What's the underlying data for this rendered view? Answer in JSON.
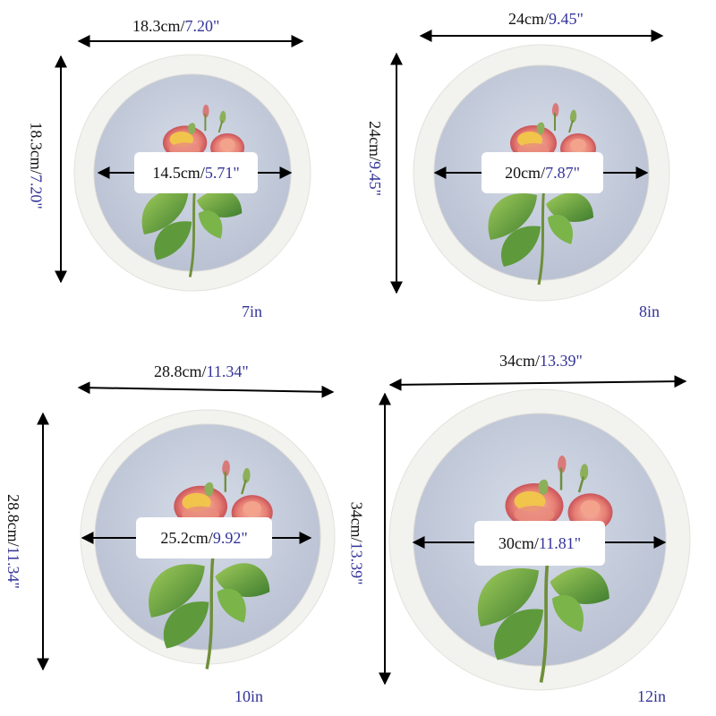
{
  "frames": [
    {
      "outer_cm": "18.3cm",
      "sep": "/",
      "outer_in": "7.20\"",
      "inner_cm": "14.5cm",
      "inner_in": "5.71\"",
      "size_label": "7in"
    },
    {
      "outer_cm": "24cm",
      "sep": "/",
      "outer_in": "9.45\"",
      "inner_cm": "20cm",
      "inner_in": "7.87\"",
      "size_label": "8in"
    },
    {
      "outer_cm": "28.8cm",
      "sep": "/",
      "outer_in": "11.34\"",
      "inner_cm": "25.2cm",
      "inner_in": "9.92\"",
      "size_label": "10in"
    },
    {
      "outer_cm": "34cm",
      "sep": "/",
      "outer_in": "13.39\"",
      "inner_cm": "30cm",
      "inner_in": "11.81\"",
      "size_label": "12in"
    }
  ],
  "colors": {
    "frame": "#f2f2ef",
    "mat": "#c9d0de",
    "inch_text": "#333399",
    "arrow": "#000000"
  },
  "icons": [
    "rose-illustration",
    "double-arrow"
  ]
}
